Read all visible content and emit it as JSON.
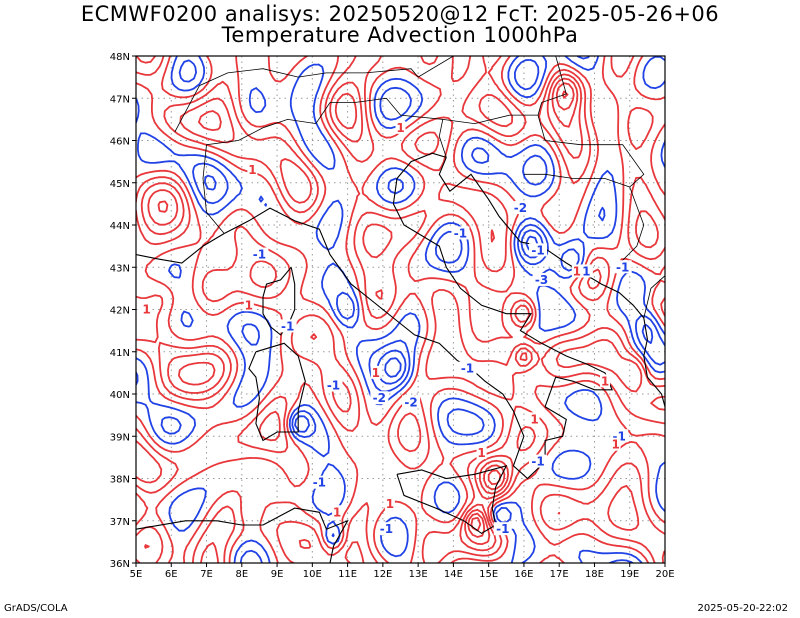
{
  "header": {
    "title_line1": "ECMWF0200 analisys: 20250520@12 FcT: 2025-05-26+06",
    "title_line2": "Temperature Advection 1000hPa"
  },
  "map": {
    "lon_ticks": [
      "5E",
      "6E",
      "7E",
      "8E",
      "9E",
      "10E",
      "11E",
      "12E",
      "13E",
      "14E",
      "15E",
      "16E",
      "17E",
      "18E",
      "19E",
      "20E"
    ],
    "lat_ticks": [
      "36N",
      "37N",
      "38N",
      "39N",
      "40N",
      "41N",
      "42N",
      "43N",
      "44N",
      "45N",
      "46N",
      "47N",
      "48N"
    ],
    "lon_range": [
      5,
      20
    ],
    "lat_range": [
      36,
      48
    ],
    "grid": "dotted",
    "colors": {
      "positive": "#e8383c",
      "negative": "#2143e6",
      "coast": "#000000",
      "grid": "#9a9a9a"
    },
    "contour_labels": [
      {
        "text": "-1",
        "lon": 10.6,
        "lat": 40.2,
        "sign": "neg"
      },
      {
        "text": "-2",
        "lon": 11.9,
        "lat": 39.9,
        "sign": "neg"
      },
      {
        "text": "-2",
        "lon": 12.8,
        "lat": 39.8,
        "sign": "neg"
      },
      {
        "text": "-1",
        "lon": 14.4,
        "lat": 40.6,
        "sign": "neg"
      },
      {
        "text": "-2",
        "lon": 15.9,
        "lat": 44.4,
        "sign": "neg"
      },
      {
        "text": "-1",
        "lon": 14.2,
        "lat": 43.8,
        "sign": "neg"
      },
      {
        "text": "-1",
        "lon": 16.4,
        "lat": 43.4,
        "sign": "neg"
      },
      {
        "text": "-3",
        "lon": 16.5,
        "lat": 42.7,
        "sign": "neg"
      },
      {
        "text": "-1",
        "lon": 17.7,
        "lat": 42.9,
        "sign": "neg"
      },
      {
        "text": "-1",
        "lon": 18.8,
        "lat": 43.0,
        "sign": "neg"
      },
      {
        "text": "-1",
        "lon": 9.3,
        "lat": 41.6,
        "sign": "neg"
      },
      {
        "text": "-1",
        "lon": 10.2,
        "lat": 37.9,
        "sign": "neg"
      },
      {
        "text": "-1",
        "lon": 12.1,
        "lat": 36.8,
        "sign": "neg"
      },
      {
        "text": "-1",
        "lon": 15.4,
        "lat": 36.8,
        "sign": "neg"
      },
      {
        "text": "-1",
        "lon": 18.7,
        "lat": 39.0,
        "sign": "neg"
      },
      {
        "text": "1",
        "lon": 11.8,
        "lat": 40.5,
        "sign": "pos"
      },
      {
        "text": "1",
        "lon": 5.3,
        "lat": 42.0,
        "sign": "pos"
      },
      {
        "text": "1",
        "lon": 8.2,
        "lat": 42.1,
        "sign": "pos"
      },
      {
        "text": "1",
        "lon": 18.3,
        "lat": 40.3,
        "sign": "pos"
      },
      {
        "text": "1",
        "lon": 10.7,
        "lat": 37.2,
        "sign": "pos"
      },
      {
        "text": "1",
        "lon": 12.2,
        "lat": 37.4,
        "sign": "pos"
      },
      {
        "text": "1",
        "lon": 14.8,
        "lat": 38.6,
        "sign": "pos"
      },
      {
        "text": "1",
        "lon": 16.3,
        "lat": 39.4,
        "sign": "pos"
      },
      {
        "text": "1",
        "lon": 17.5,
        "lat": 42.9,
        "sign": "pos"
      },
      {
        "text": "1",
        "lon": 8.3,
        "lat": 45.3,
        "sign": "pos"
      },
      {
        "text": "1",
        "lon": 12.5,
        "lat": 46.3,
        "sign": "pos"
      },
      {
        "text": "-1",
        "lon": 16.4,
        "lat": 38.4,
        "sign": "neg"
      },
      {
        "text": "1",
        "lon": 18.6,
        "lat": 38.8,
        "sign": "pos"
      },
      {
        "text": "-1",
        "lon": 8.5,
        "lat": 43.3,
        "sign": "neg"
      }
    ]
  },
  "footer": {
    "left": "GrADS/COLA",
    "right": "2025-05-20-22:02"
  }
}
